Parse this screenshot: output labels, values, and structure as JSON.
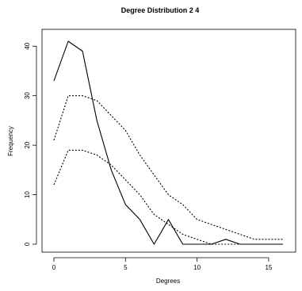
{
  "chart_data": {
    "type": "line",
    "title": "Degree Distribution 2 4",
    "xlabel": "Degrees",
    "ylabel": "Frequency",
    "xlim": [
      0,
      16
    ],
    "ylim": [
      0,
      41
    ],
    "x_ticks": [
      0,
      5,
      10,
      15
    ],
    "y_ticks": [
      0,
      10,
      20,
      30,
      40
    ],
    "grid": false,
    "x": [
      0,
      1,
      2,
      3,
      4,
      5,
      6,
      7,
      8,
      9,
      10,
      11,
      12,
      13,
      14,
      15,
      16
    ],
    "series": [
      {
        "style": "solid",
        "color": "#000000",
        "values": [
          33,
          41,
          39,
          25,
          15,
          8,
          5,
          0,
          5,
          0,
          0,
          0,
          1,
          0,
          0,
          0,
          0
        ]
      },
      {
        "style": "dotted",
        "color": "#000000",
        "values": [
          21,
          30,
          30,
          29,
          26,
          23,
          18,
          14,
          10,
          8,
          5,
          4,
          3,
          2,
          1,
          1,
          1
        ]
      },
      {
        "style": "dotted",
        "color": "#000000",
        "values": [
          12,
          19,
          19,
          18,
          16,
          13,
          10,
          6,
          4,
          2,
          1,
          0,
          0,
          0,
          0,
          0,
          0
        ]
      }
    ]
  }
}
